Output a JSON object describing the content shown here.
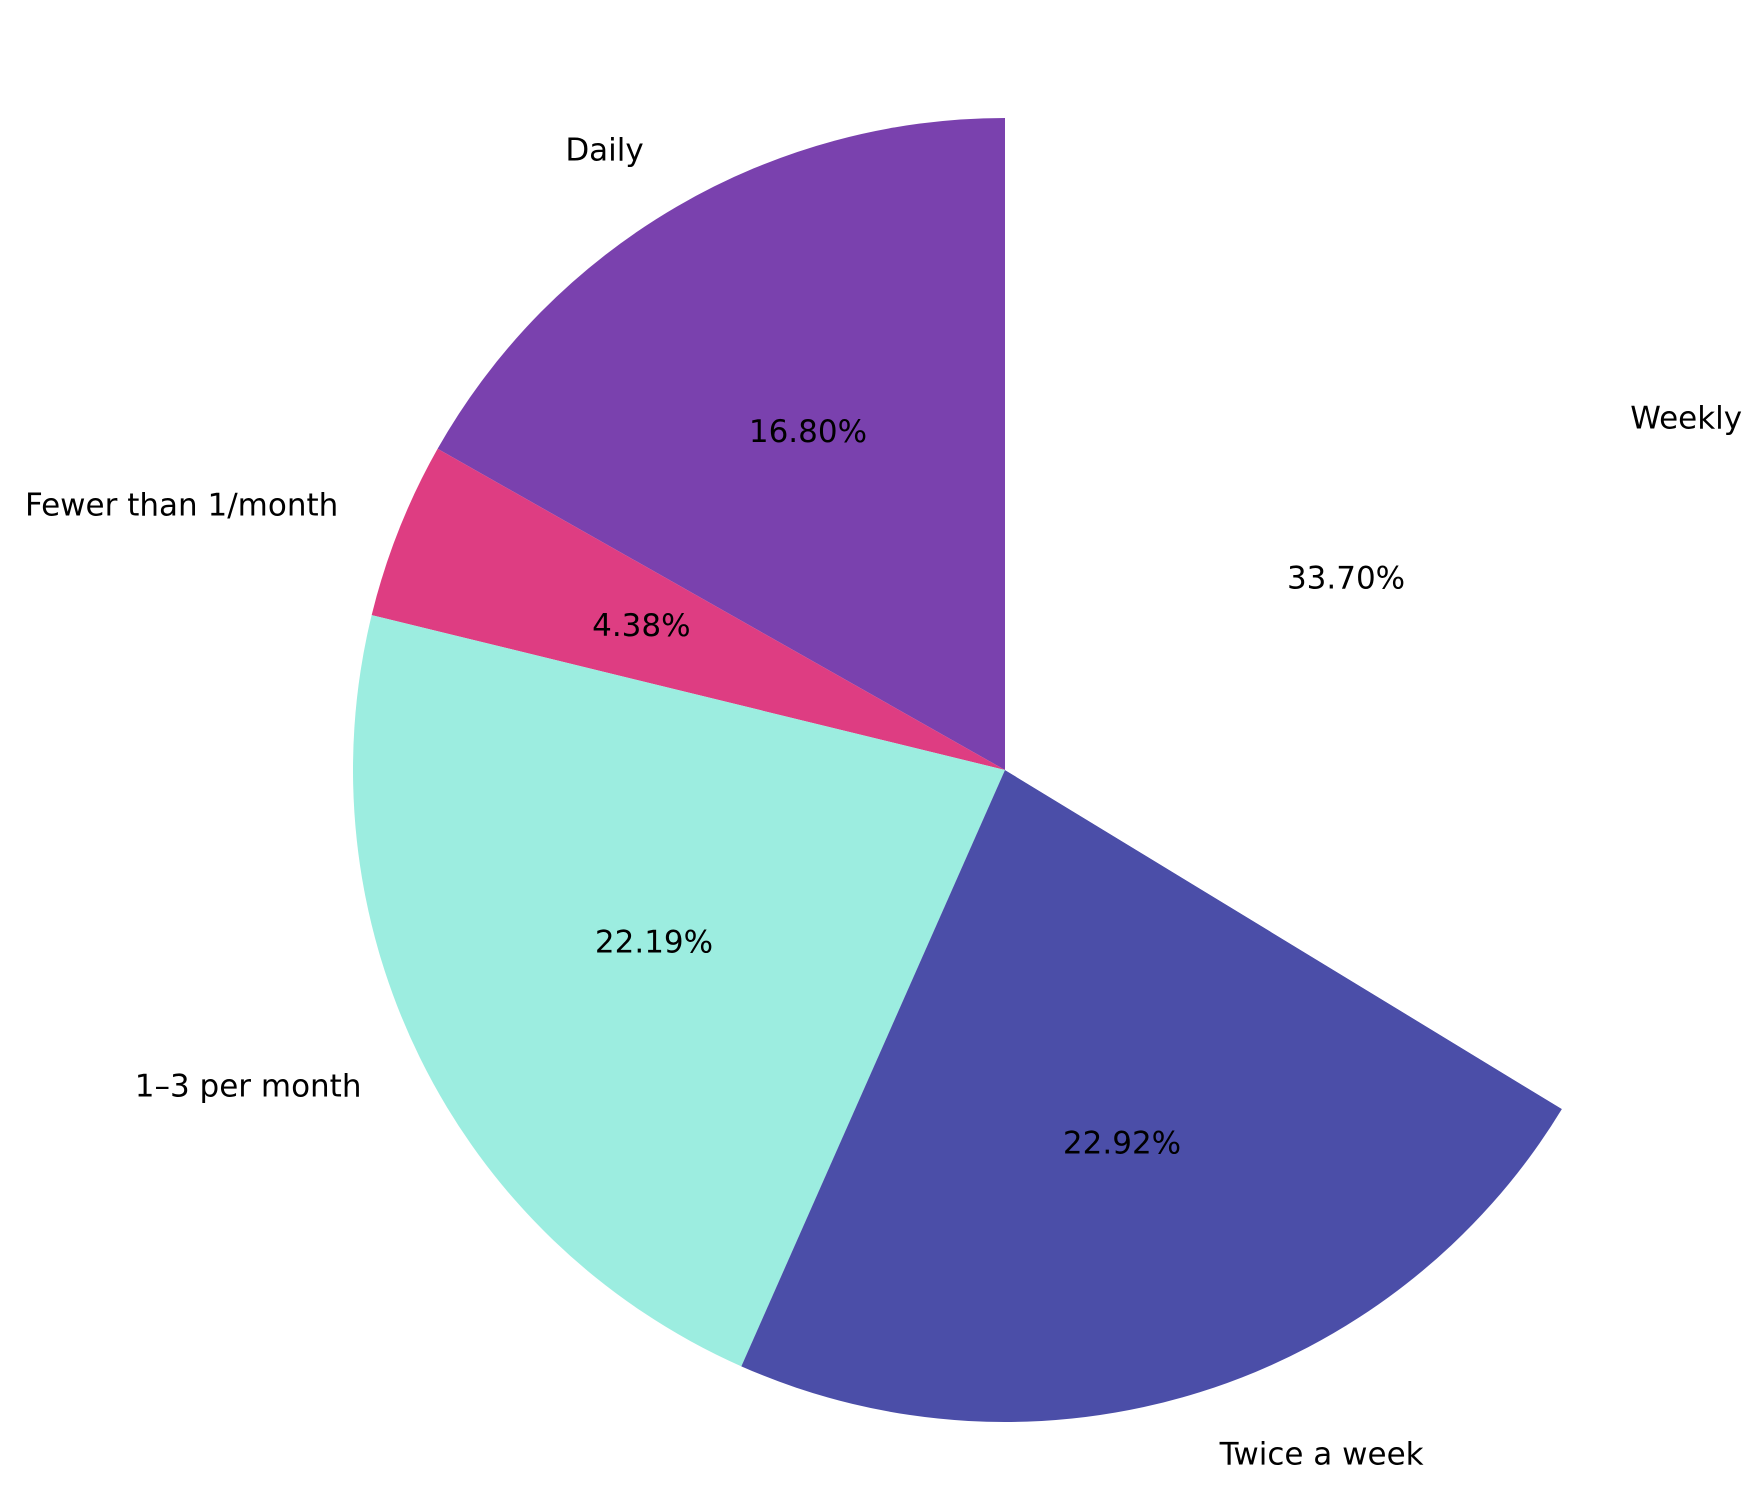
{
  "chart_data": {
    "type": "pie",
    "title": "",
    "start_angle_deg": 90,
    "direction": "counterclockwise",
    "categories": [
      "Daily",
      "Fewer than 1/month",
      "1–3 per month",
      "Twice a week",
      "Weekly"
    ],
    "values": [
      16.8,
      4.38,
      22.19,
      22.92,
      33.7
    ],
    "labels_pct": [
      "16.80%",
      "4.38%",
      "22.19%",
      "22.92%",
      "33.70%"
    ],
    "colors": [
      "#7a41ae",
      "#de3d82",
      "#9cede0",
      "#4b4ea8",
      "#ffffff"
    ],
    "legend": "none",
    "slices": [
      {
        "label": "Daily",
        "value": 16.8,
        "pct_text": "16.80%",
        "color": "#7a41ae"
      },
      {
        "label": "Fewer than 1/month",
        "value": 4.38,
        "pct_text": "4.38%",
        "color": "#de3d82"
      },
      {
        "label": "1–3 per month",
        "value": 22.19,
        "pct_text": "22.19%",
        "color": "#9cede0"
      },
      {
        "label": "Twice a week",
        "value": 22.92,
        "pct_text": "22.92%",
        "color": "#4b4ea8"
      },
      {
        "label": "Weekly",
        "value": 33.7,
        "pct_text": "33.70%",
        "color": "#ffffff"
      }
    ]
  }
}
